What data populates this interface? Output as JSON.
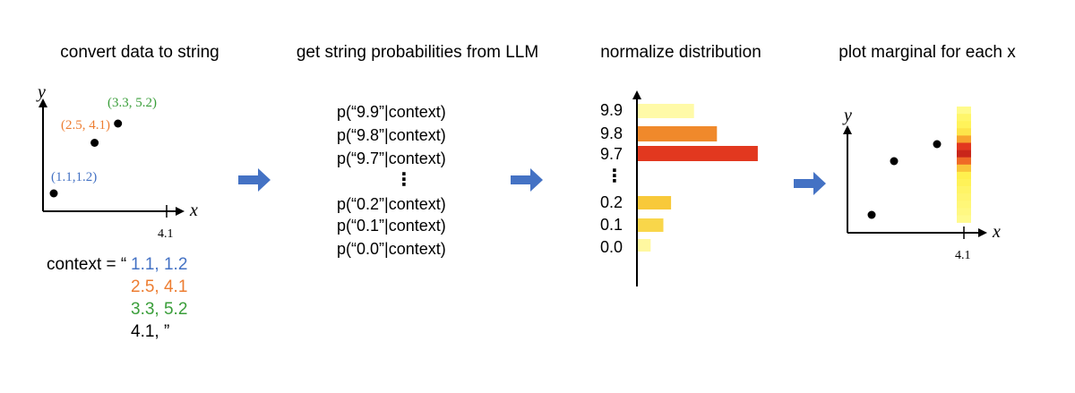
{
  "steps": {
    "step1": {
      "title": "convert data to string"
    },
    "step2": {
      "title": "get string probabilities from LLM"
    },
    "step3": {
      "title": "normalize distribution"
    },
    "step4": {
      "title": "plot marginal for each x"
    }
  },
  "panel1": {
    "y_axis": "y",
    "x_axis": "x",
    "tick_label": "4.1",
    "points": [
      {
        "label": "(1.1,1.2)",
        "x": 1.1,
        "y": 1.2,
        "color": "#4472c4"
      },
      {
        "label": "(2.5, 4.1)",
        "x": 2.5,
        "y": 4.1,
        "color": "#ed7d31"
      },
      {
        "label": "(3.3, 5.2)",
        "x": 3.3,
        "y": 5.2,
        "color": "#3a9e3a"
      }
    ],
    "context": {
      "prefix": "context = “",
      "lines": [
        "1.1, 1.2",
        "2.5, 4.1",
        "3.3, 5.2",
        "4.1, ”"
      ],
      "colors": [
        "#4472c4",
        "#ed7d31",
        "#3a9e3a",
        "#000000"
      ]
    }
  },
  "panel2": {
    "probs": [
      "p(“9.9”|context)",
      "p(“9.8”|context)",
      "p(“9.7”|context)",
      "p(“0.2”|context)",
      "p(“0.1”|context)",
      "p(“0.0”|context)"
    ],
    "ellipsis": "⋮"
  },
  "panel3": {
    "labels": [
      "9.9",
      "9.8",
      "9.7",
      "0.2",
      "0.1",
      "0.0"
    ],
    "ellipsis": "⋮"
  },
  "panel4": {
    "y_axis": "y",
    "x_axis": "x",
    "tick_label": "4.1"
  },
  "arrow_color": "#4472c4",
  "chart_data": {
    "type": "bar",
    "orientation": "horizontal",
    "title": "normalize distribution",
    "categories": [
      "9.9",
      "9.8",
      "9.7",
      "0.2",
      "0.1",
      "0.0"
    ],
    "values": [
      0.22,
      0.31,
      0.47,
      0.13,
      0.1,
      0.05
    ],
    "colors": [
      "#fffaa8",
      "#f0892b",
      "#e2381f",
      "#f8c93a",
      "#f9d64a",
      "#fff8a0"
    ]
  }
}
